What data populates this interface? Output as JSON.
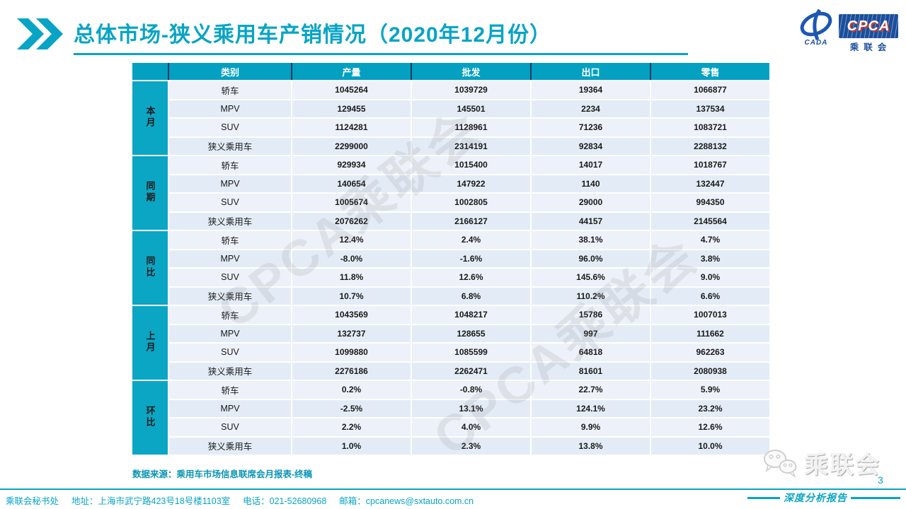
{
  "title": {
    "text": "总体市场-狭义乘用车产销情况（2020年12月份）"
  },
  "logo": {
    "cpca": "CPCA",
    "cada": "CADA",
    "name_cn": "乘联会"
  },
  "watermark": {
    "text": "CPCA乘联会"
  },
  "table": {
    "headers": [
      "类别",
      "产量",
      "批发",
      "出口",
      "零售"
    ],
    "groups": [
      {
        "label": "本月",
        "rows": [
          {
            "category": "轿车",
            "values": [
              "1045264",
              "1039729",
              "19364",
              "1066877"
            ]
          },
          {
            "category": "MPV",
            "values": [
              "129455",
              "145501",
              "2234",
              "137534"
            ]
          },
          {
            "category": "SUV",
            "values": [
              "1124281",
              "1128961",
              "71236",
              "1083721"
            ]
          },
          {
            "category": "狭义乘用车",
            "values": [
              "2299000",
              "2314191",
              "92834",
              "2288132"
            ]
          }
        ]
      },
      {
        "label": "同期",
        "rows": [
          {
            "category": "轿车",
            "values": [
              "929934",
              "1015400",
              "14017",
              "1018767"
            ]
          },
          {
            "category": "MPV",
            "values": [
              "140654",
              "147922",
              "1140",
              "132447"
            ]
          },
          {
            "category": "SUV",
            "values": [
              "1005674",
              "1002805",
              "29000",
              "994350"
            ]
          },
          {
            "category": "狭义乘用车",
            "values": [
              "2076262",
              "2166127",
              "44157",
              "2145564"
            ]
          }
        ]
      },
      {
        "label": "同比",
        "rows": [
          {
            "category": "轿车",
            "values": [
              "12.4%",
              "2.4%",
              "38.1%",
              "4.7%"
            ]
          },
          {
            "category": "MPV",
            "values": [
              "-8.0%",
              "-1.6%",
              "96.0%",
              "3.8%"
            ]
          },
          {
            "category": "SUV",
            "values": [
              "11.8%",
              "12.6%",
              "145.6%",
              "9.0%"
            ]
          },
          {
            "category": "狭义乘用车",
            "values": [
              "10.7%",
              "6.8%",
              "110.2%",
              "6.6%"
            ]
          }
        ]
      },
      {
        "label": "上月",
        "rows": [
          {
            "category": "轿车",
            "values": [
              "1043569",
              "1048217",
              "15786",
              "1007013"
            ]
          },
          {
            "category": "MPV",
            "values": [
              "132737",
              "128655",
              "997",
              "111662"
            ]
          },
          {
            "category": "SUV",
            "values": [
              "1099880",
              "1085599",
              "64818",
              "962263"
            ]
          },
          {
            "category": "狭义乘用车",
            "values": [
              "2276186",
              "2262471",
              "81601",
              "2080938"
            ]
          }
        ]
      },
      {
        "label": "环比",
        "rows": [
          {
            "category": "轿车",
            "values": [
              "0.2%",
              "-0.8%",
              "22.7%",
              "5.9%"
            ]
          },
          {
            "category": "MPV",
            "values": [
              "-2.5%",
              "13.1%",
              "124.1%",
              "23.2%"
            ]
          },
          {
            "category": "SUV",
            "values": [
              "2.2%",
              "4.0%",
              "9.9%",
              "12.6%"
            ]
          },
          {
            "category": "狭义乘用车",
            "values": [
              "1.0%",
              "2.3%",
              "13.8%",
              "10.0%"
            ]
          }
        ]
      }
    ]
  },
  "source_note": "数据来源：乘用车市场信息联席会月报表-终稿",
  "footer": {
    "parts": [
      "乘联会秘书处",
      "地址：上海市武宁路423号18号楼1103室",
      "电话：021-52680968",
      "邮箱：cpcanews@sxtauto.com.cn"
    ]
  },
  "bottom_right": {
    "badge_text": "乘联会",
    "report_label": "深度分析报告",
    "page_number": "3"
  },
  "colors": {
    "accent": "#08A4C6",
    "header_bg": "#03A0C2",
    "group_bg": "#0AA6C4",
    "row_odd": "#EDF1F9",
    "row_even": "#E3ECF6",
    "header_sep": "#1F3864",
    "logo_blue": "#1B4F9C",
    "logo_red": "#C8392F"
  }
}
